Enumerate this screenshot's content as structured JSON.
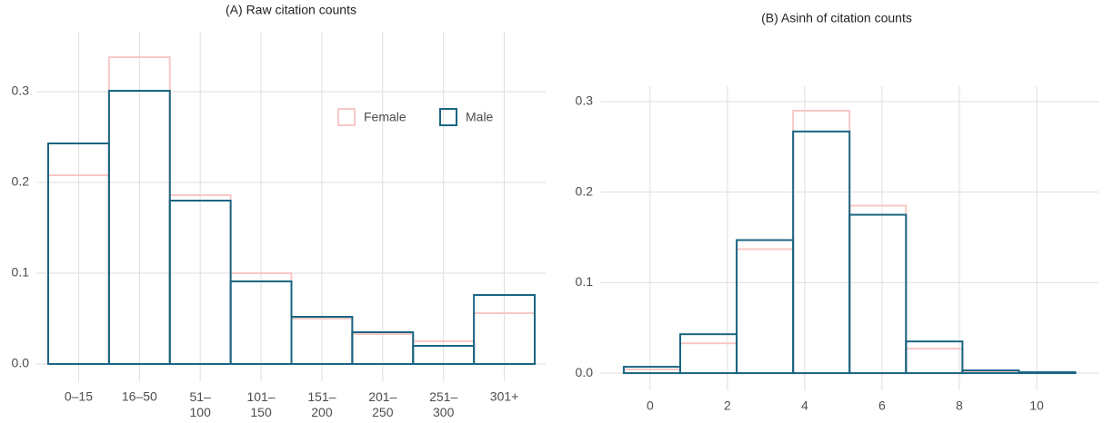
{
  "chart_data": [
    {
      "type": "bar",
      "title": "(A) Raw citation counts",
      "categories": [
        "0–15",
        "16–50",
        "51–\n100",
        "101–\n150",
        "151–\n200",
        "201–\n250",
        "251–\n300",
        "301+"
      ],
      "series": [
        {
          "name": "Female",
          "color": "#f8c8c6",
          "values": [
            0.208,
            0.338,
            0.186,
            0.1,
            0.05,
            0.033,
            0.025,
            0.056
          ]
        },
        {
          "name": "Male",
          "color": "#1b6582",
          "values": [
            0.243,
            0.301,
            0.18,
            0.091,
            0.052,
            0.035,
            0.02,
            0.076
          ]
        }
      ],
      "ylim": [
        -0.019,
        0.366
      ],
      "yticks": [
        {
          "value": 0,
          "label": "0.0"
        },
        0.1,
        0.2,
        0.3
      ],
      "grid": true,
      "legend": "top-right"
    },
    {
      "type": "histogram",
      "title": "(B) Asinh of citation counts",
      "bins": [
        -0.68,
        0.78,
        2.24,
        3.7,
        5.16,
        6.62,
        8.08,
        9.54,
        11.0
      ],
      "series": [
        {
          "name": "Female",
          "color": "#f8c8c6",
          "values": [
            0.004,
            0.033,
            0.137,
            0.29,
            0.185,
            0.027,
            0.002,
            0.0005
          ]
        },
        {
          "name": "Male",
          "color": "#1b6582",
          "values": [
            0.007,
            0.043,
            0.147,
            0.267,
            0.175,
            0.035,
            0.003,
            0.001
          ]
        }
      ],
      "xlim": [
        -1.29,
        11.6
      ],
      "xticks": [
        0,
        2,
        4,
        6,
        8,
        10
      ],
      "ylim": [
        -0.019,
        0.317
      ],
      "yticks": [
        {
          "value": 0,
          "label": "0.0"
        },
        0.1,
        0.2,
        0.3
      ],
      "grid": true
    }
  ]
}
